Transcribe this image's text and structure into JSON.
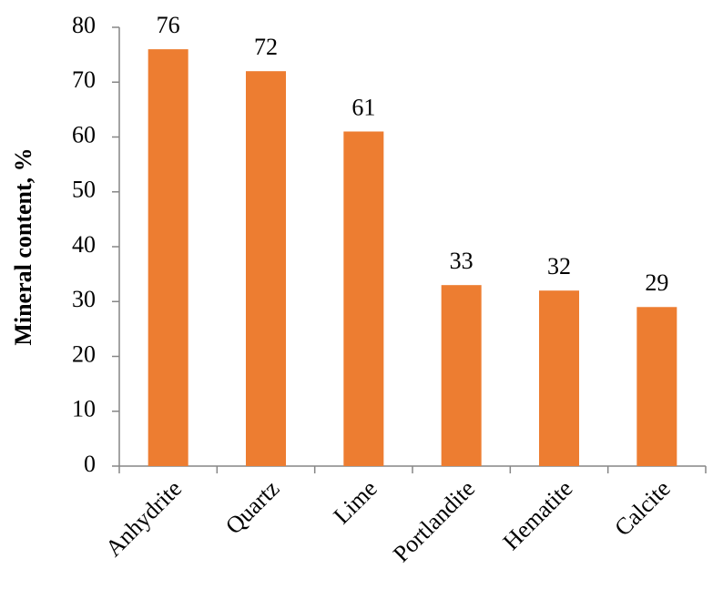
{
  "chart_data": {
    "type": "bar",
    "ylabel": "Mineral content, %",
    "categories": [
      "Anhydrite",
      "Quartz",
      "Lime",
      "Portlandite",
      "Hematite",
      "Calcite"
    ],
    "values": [
      76,
      72,
      61,
      33,
      32,
      29
    ],
    "color": "#ed7d31",
    "ylim": [
      0,
      80
    ],
    "yticks": [
      0,
      10,
      20,
      30,
      40,
      50,
      60,
      70,
      80
    ],
    "grid": false,
    "data_labels": true
  }
}
